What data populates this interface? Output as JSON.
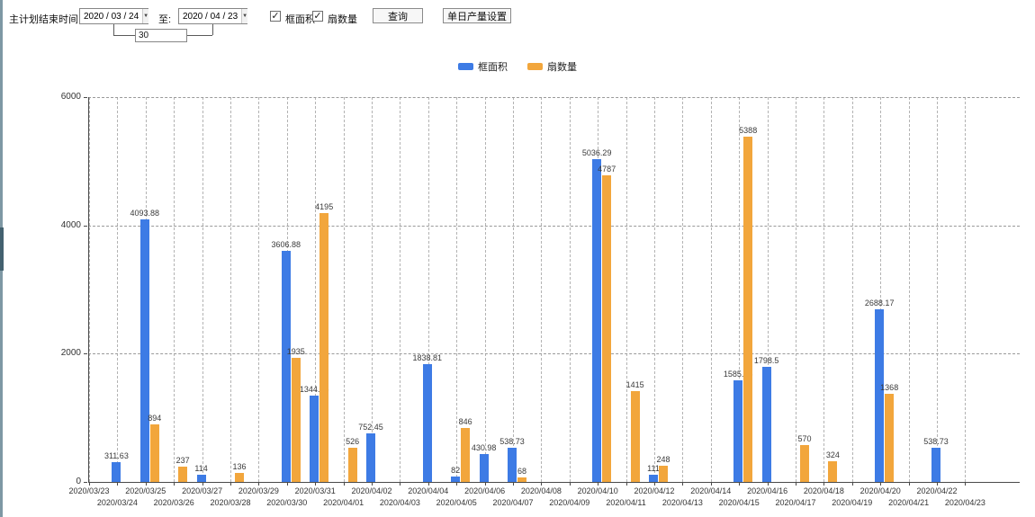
{
  "toolbar": {
    "plan_end_label": "主计划结束时间:",
    "date_from": "2020 / 03 / 24",
    "to_label": "至:",
    "date_to": "2020 / 04 / 23",
    "interval_days": "30",
    "checkbox_frame_area_label": "框面积",
    "checkbox_fan_count_label": "扇数量",
    "checkbox_checked_glyph": "✓",
    "dropdown_arrow_glyph": "▼",
    "query_button": "查询",
    "daily_output_button": "单日产量设置"
  },
  "chart_data": {
    "type": "bar",
    "title": "",
    "xlabel": "",
    "ylabel": "",
    "ylim": [
      0,
      6000
    ],
    "yticks": [
      0,
      2000,
      4000,
      6000
    ],
    "grid": true,
    "legend_position": "top-center",
    "categories": [
      "2020/03/23",
      "2020/03/24",
      "2020/03/25",
      "2020/03/26",
      "2020/03/27",
      "2020/03/28",
      "2020/03/29",
      "2020/03/30",
      "2020/03/31",
      "2020/04/01",
      "2020/04/02",
      "2020/04/03",
      "2020/04/04",
      "2020/04/05",
      "2020/04/06",
      "2020/04/07",
      "2020/04/08",
      "2020/04/09",
      "2020/04/10",
      "2020/04/11",
      "2020/04/12",
      "2020/04/13",
      "2020/04/14",
      "2020/04/15",
      "2020/04/16",
      "2020/04/17",
      "2020/04/18",
      "2020/04/19",
      "2020/04/20",
      "2020/04/21",
      "2020/04/22",
      "2020/04/23"
    ],
    "series": [
      {
        "name": "框面积",
        "color": "#3d7be5",
        "values": [
          null,
          311.63,
          4093.88,
          null,
          114,
          null,
          null,
          3606.88,
          1344.95,
          null,
          752.45,
          null,
          1838.81,
          82,
          430.98,
          538.73,
          null,
          null,
          5036.29,
          null,
          111,
          null,
          null,
          1585.96,
          1798.5,
          null,
          null,
          null,
          2688.17,
          null,
          538.73,
          null
        ]
      },
      {
        "name": "扇数量",
        "color": "#f2a63c",
        "values": [
          null,
          null,
          894,
          237,
          null,
          136,
          null,
          1935,
          4195,
          526,
          null,
          null,
          null,
          846,
          null,
          68,
          null,
          null,
          4787,
          1415,
          248,
          null,
          null,
          5388,
          null,
          570,
          324,
          null,
          1368,
          null,
          null,
          null
        ]
      }
    ]
  }
}
